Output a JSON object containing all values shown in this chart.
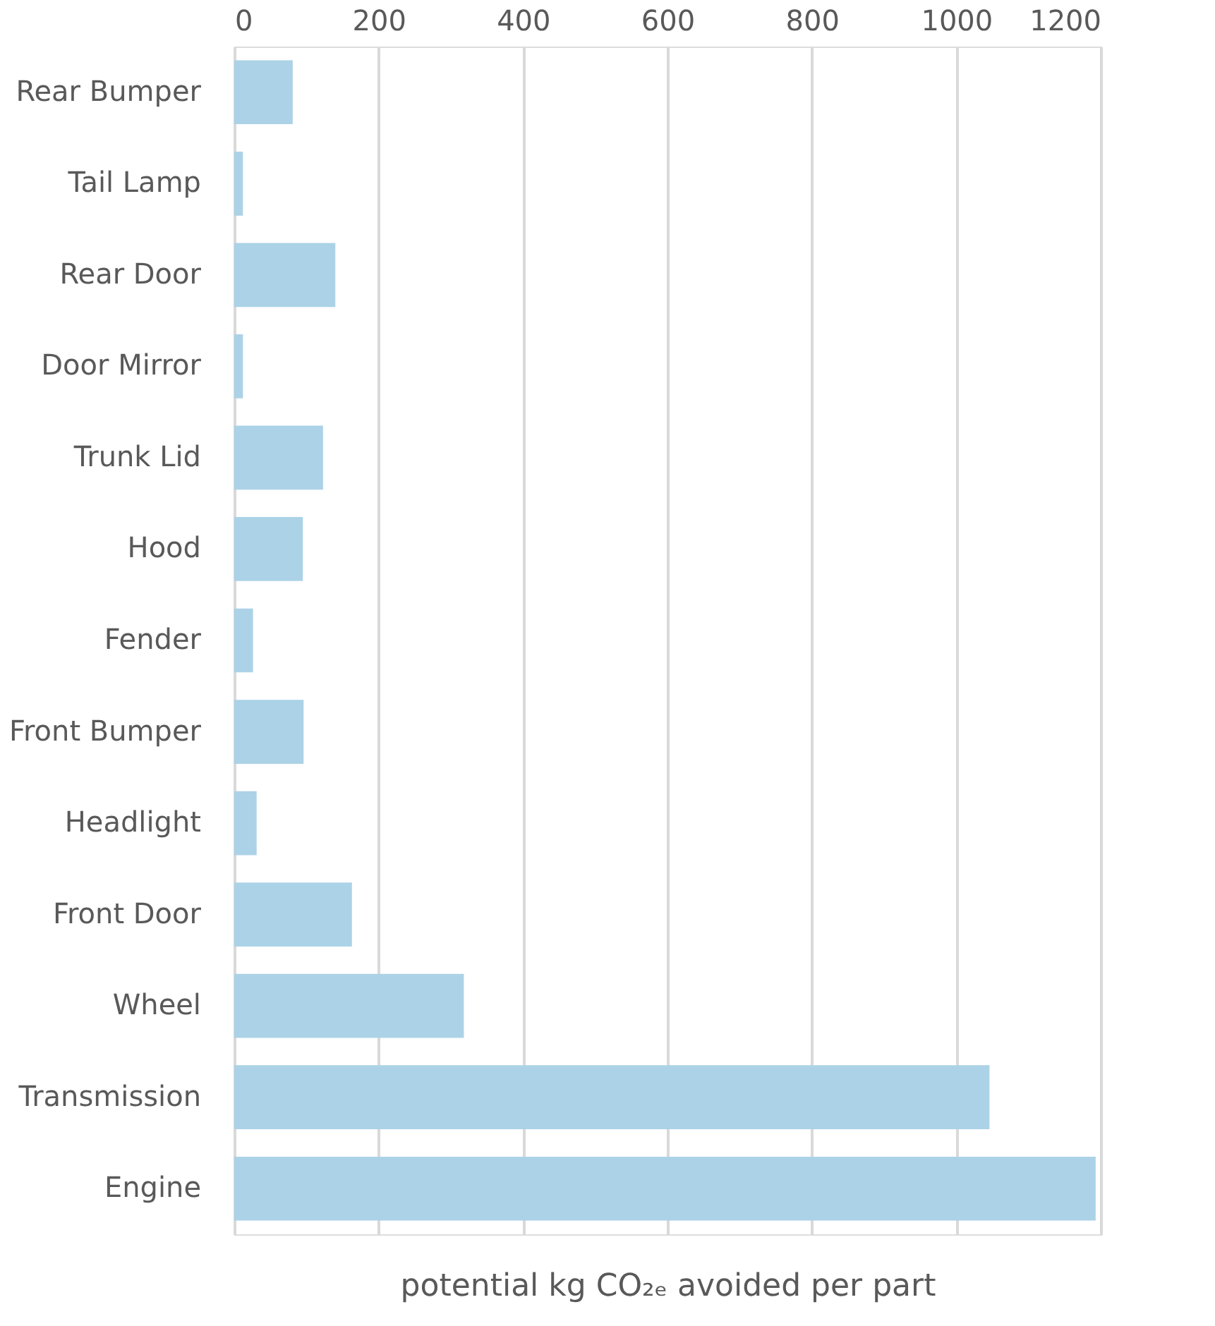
{
  "chart_data": {
    "type": "bar",
    "orientation": "horizontal",
    "xlabel": "potential kg CO₂ₑ avoided per part",
    "categories": [
      "Rear Bumper",
      "Tail Lamp",
      "Rear Door",
      "Door Mirror",
      "Trunk Lid",
      "Hood",
      "Fender",
      "Front Bumper",
      "Headlight",
      "Front Door",
      "Wheel",
      "Transmission",
      "Engine"
    ],
    "values": [
      81,
      12,
      140,
      12,
      123,
      95,
      26,
      96,
      31,
      163,
      318,
      1046,
      1193
    ],
    "color": "#acd2e7",
    "xlim": [
      0,
      1200
    ],
    "xticks": [
      0,
      200,
      400,
      600,
      800,
      1000,
      1200
    ],
    "grid": "x"
  }
}
